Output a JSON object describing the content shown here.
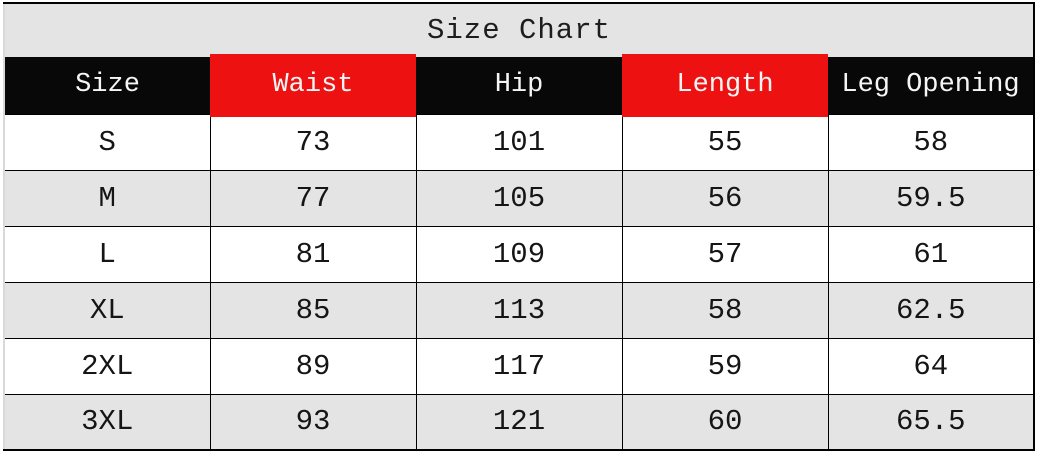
{
  "title": "Size Chart",
  "colors": {
    "title_bar_bg": "#e4e4e4",
    "header_black": "#080808",
    "header_red": "#ed1111",
    "header_text": "#f5f5f5",
    "row_alt_bg": "#e4e4e4",
    "row_bg": "#ffffff",
    "grid_border": "#000000",
    "body_text": "#151515"
  },
  "chart_data": {
    "type": "table",
    "title": "Size Chart",
    "columns": [
      "Size",
      "Waist",
      "Hip",
      "Length",
      "Leg Opening"
    ],
    "header_cell_colors": [
      "black",
      "red",
      "black",
      "red",
      "black"
    ],
    "rows": [
      [
        "S",
        "73",
        "101",
        "55",
        "58"
      ],
      [
        "M",
        "77",
        "105",
        "56",
        "59.5"
      ],
      [
        "L",
        "81",
        "109",
        "57",
        "61"
      ],
      [
        "XL",
        "85",
        "113",
        "58",
        "62.5"
      ],
      [
        "2XL",
        "89",
        "117",
        "59",
        "64"
      ],
      [
        "3XL",
        "93",
        "121",
        "60",
        "65.5"
      ]
    ],
    "layout": "title bar, header row, 6 zebra-striped data rows"
  }
}
